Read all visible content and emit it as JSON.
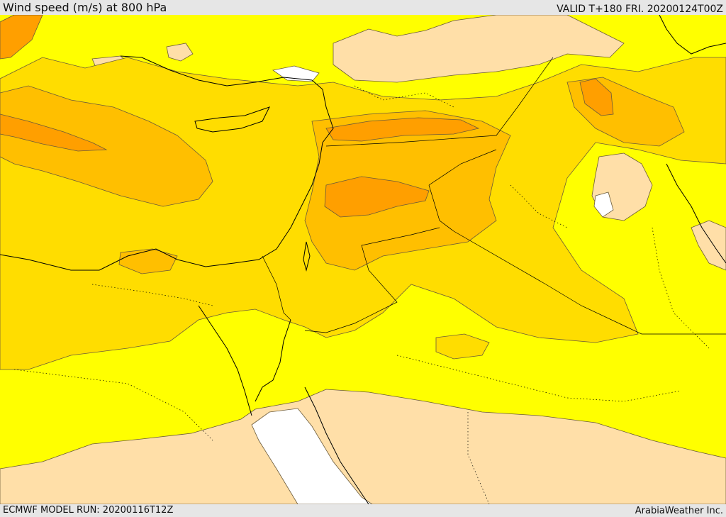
{
  "header": {
    "title": "Wind speed (m/s) at 800 hPa",
    "valid": "VALID T+180 FRI. 20200124T00Z"
  },
  "footer": {
    "model_run": "ECMWF MODEL RUN: 20200116T12Z",
    "credit": "ArabiaWeather Inc."
  },
  "map": {
    "field": "wind speed",
    "level": "800 hPa",
    "colors": {
      "shade_lowest": "#ffffff",
      "shade_low": "#ffdfa8",
      "shade_mid": "#ffff00",
      "shade_moderate": "#ffdd00",
      "shade_high": "#ffbf00",
      "shade_higher": "#ff9f00",
      "shade_highest": "#ff8c00",
      "coastline": "#000000",
      "contour": "#6b5a3a"
    }
  }
}
